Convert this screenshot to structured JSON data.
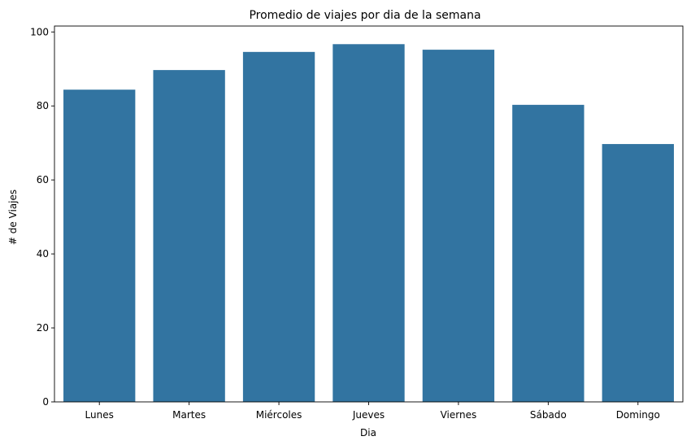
{
  "chart_data": {
    "type": "bar",
    "title": "Promedio de viajes por dia de la semana",
    "xlabel": "Dia",
    "ylabel": "# de Viajes",
    "categories": [
      "Lunes",
      "Martes",
      "Miércoles",
      "Jueves",
      "Viernes",
      "Sábado",
      "Domingo"
    ],
    "values": [
      84.4,
      89.7,
      94.6,
      96.7,
      95.2,
      80.3,
      69.7
    ],
    "ylim": [
      0,
      101.6
    ],
    "yticks": [
      0,
      20,
      40,
      60,
      80,
      100
    ],
    "grid": false,
    "legend": "none",
    "bar_color": "#3274a1"
  }
}
